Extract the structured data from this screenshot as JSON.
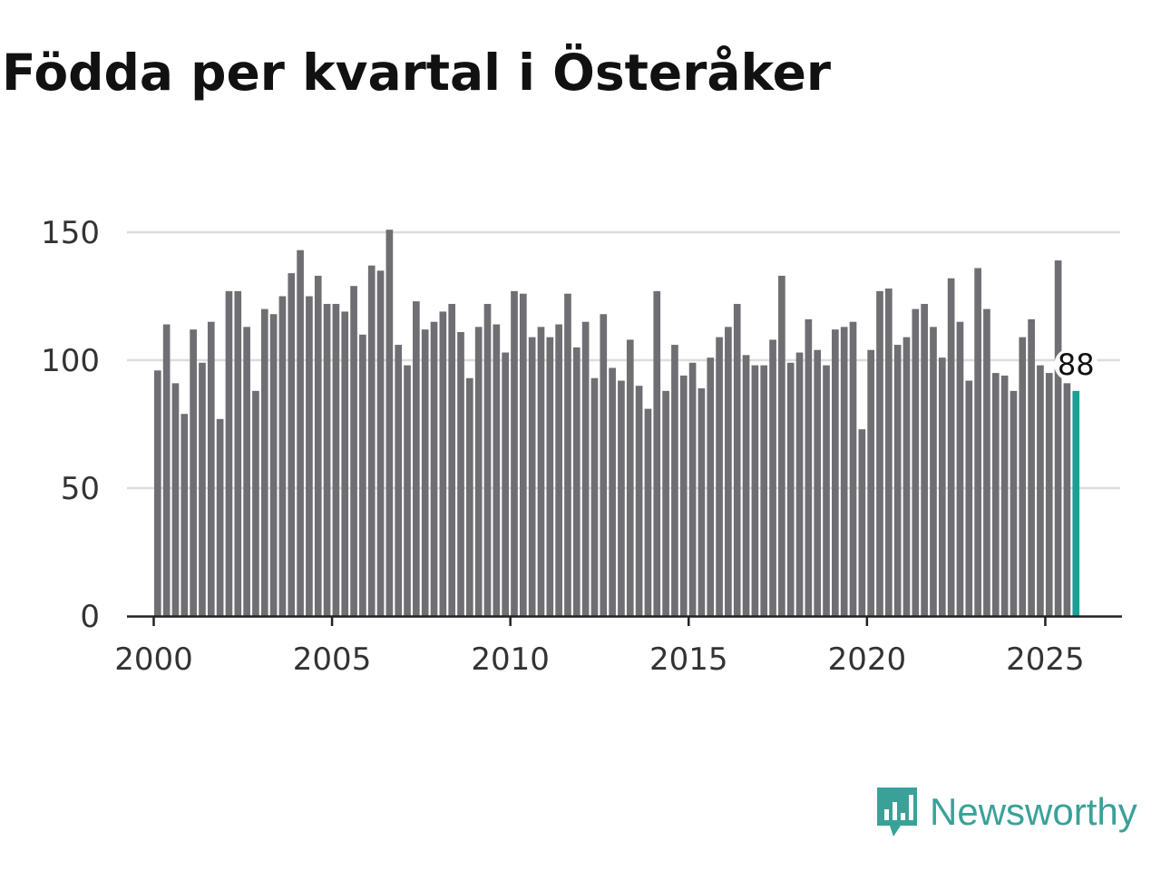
{
  "header": {
    "title": "Födda per kvartal i Österåker"
  },
  "brand": {
    "name": "Newsworthy",
    "color": "#3aa199",
    "icon": "newsworthy-logo-icon"
  },
  "colors": {
    "bar": "#6f6e73",
    "highlight": "#1aa096",
    "grid": "#dddddd",
    "axis": "#222222"
  },
  "chart_data": {
    "type": "bar",
    "title": "Födda per kvartal i Österåker",
    "xlabel": "",
    "ylabel": "",
    "ylim": [
      0,
      150
    ],
    "yticks": [
      0,
      50,
      100,
      150
    ],
    "xticks": [
      2000,
      2005,
      2010,
      2015,
      2020,
      2025
    ],
    "xlim": [
      1999.25,
      2027.1
    ],
    "grid": true,
    "start_year": 2000,
    "periods_per_year": 4,
    "values": [
      96,
      114,
      91,
      79,
      112,
      99,
      115,
      77,
      127,
      127,
      113,
      88,
      120,
      118,
      125,
      134,
      143,
      125,
      133,
      122,
      122,
      119,
      129,
      110,
      137,
      135,
      151,
      106,
      98,
      123,
      112,
      115,
      119,
      122,
      111,
      93,
      113,
      122,
      114,
      103,
      127,
      126,
      109,
      113,
      109,
      114,
      126,
      105,
      115,
      93,
      118,
      97,
      92,
      108,
      90,
      81,
      127,
      88,
      106,
      94,
      99,
      89,
      101,
      109,
      113,
      122,
      102,
      98,
      98,
      108,
      133,
      99,
      103,
      116,
      104,
      98,
      112,
      113,
      115,
      73,
      104,
      127,
      128,
      106,
      109,
      120,
      122,
      113,
      101,
      132,
      115,
      92,
      136,
      120,
      95,
      94,
      88,
      109,
      116,
      98,
      95,
      139,
      91,
      88
    ],
    "highlight_last": true,
    "annotation": {
      "label": "88",
      "value": 88
    }
  }
}
